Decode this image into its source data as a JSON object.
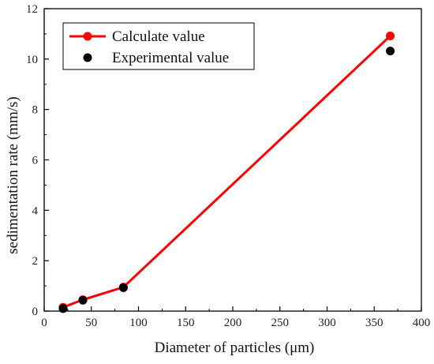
{
  "chart_data": {
    "type": "line",
    "xlabel": "Diameter of particles (μm)",
    "ylabel": "sedimentation rate (mm/s)",
    "xlim": [
      0,
      400
    ],
    "ylim": [
      0,
      12
    ],
    "xticks": [
      "0",
      "50",
      "100",
      "150",
      "200",
      "250",
      "300",
      "350",
      "400"
    ],
    "yticks": [
      "0",
      "2",
      "4",
      "6",
      "8",
      "10",
      "12"
    ],
    "grid": false,
    "legend_position": "top-left",
    "series": [
      {
        "name": "Calculate value",
        "style": "line-with-markers",
        "color": "#ff0000",
        "x": [
          20,
          41,
          84,
          367
        ],
        "y": [
          0.15,
          0.45,
          0.95,
          10.92
        ]
      },
      {
        "name": "Experimental value",
        "style": "markers",
        "color": "#000000",
        "x": [
          20,
          41,
          84,
          367
        ],
        "y": [
          0.1,
          0.43,
          0.93,
          10.32
        ]
      }
    ]
  }
}
